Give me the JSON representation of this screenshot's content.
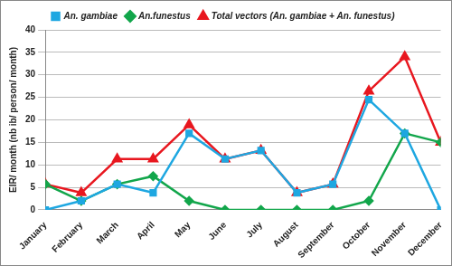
{
  "chart_data": {
    "type": "line",
    "y_label": "EIR/ month (nb ib/ person/ month)",
    "categories": [
      "January",
      "February",
      "March",
      "April",
      "May",
      "June",
      "July",
      "August",
      "September",
      "October",
      "November",
      "December"
    ],
    "series": [
      {
        "name": "An. gambiae",
        "color": "#1ea7e1",
        "marker": "square",
        "values": [
          0,
          2,
          5.7,
          3.8,
          17,
          11.3,
          13.2,
          3.8,
          5.7,
          24.5,
          17,
          0
        ]
      },
      {
        "name": "An.funestus",
        "color": "#12a64b",
        "marker": "diamond",
        "values": [
          5.7,
          2,
          5.7,
          7.5,
          2,
          0,
          0,
          0,
          0,
          2,
          17,
          15
        ]
      },
      {
        "name": "Total vectors (An. gambiae + An. funestus)",
        "color": "#e8171f",
        "marker": "triangle",
        "values": [
          5.7,
          3.8,
          11.3,
          11.3,
          18.9,
          11.3,
          13.2,
          3.8,
          5.7,
          26.4,
          34,
          15
        ]
      }
    ],
    "ylim": [
      0,
      40
    ],
    "yticks": [
      0,
      5,
      10,
      15,
      20,
      25,
      30,
      35,
      40
    ],
    "grid": true,
    "legend": "top"
  }
}
